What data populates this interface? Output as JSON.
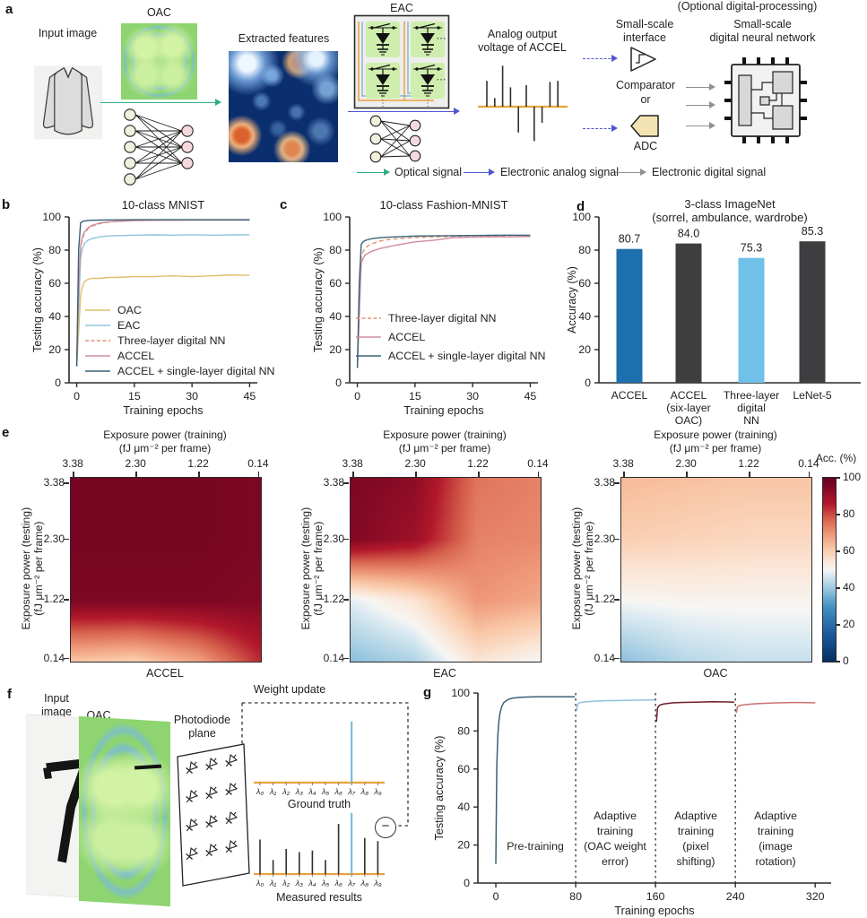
{
  "letters": {
    "a": "a",
    "b": "b",
    "c": "c",
    "d": "d",
    "e": "e",
    "f": "f",
    "g": "g"
  },
  "panel_a": {
    "input_image_label": "Input image",
    "oac_label": "OAC",
    "extracted_label": "Extracted features",
    "eac_label": "EAC",
    "analog_line1": "Analog output",
    "analog_line2": "voltage of ACCEL",
    "analog_stems": [
      2.4,
      0.8,
      3.8,
      1.8,
      -2.4,
      2.0,
      -3.2,
      -1.5,
      2.3,
      2.4
    ],
    "optional_label": "(Optional digital-processing)",
    "interface_line1": "Small-scale",
    "interface_line2": "interface",
    "comparator_label": "Comparator",
    "or_label": "or",
    "adc_label": "ADC",
    "dnn_line1": "Small-scale",
    "dnn_line2": "digital neural network",
    "colors": {
      "optical_arrow": "#2fae85",
      "analog_arrow": "#5055cd",
      "digital_arrow": "#909090",
      "baseline_orange": "#e8a23c"
    },
    "flow_legend": [
      {
        "label": "Optical signal",
        "color": "#2fae85"
      },
      {
        "label": "Electronic analog signal",
        "color": "#5055cd"
      },
      {
        "label": "Electronic digital signal",
        "color": "#909090"
      }
    ]
  },
  "chart_data": [
    {
      "id": "b",
      "type": "line",
      "title": "10-class MNIST",
      "xlabel": "Training epochs",
      "ylabel": "Testing accuracy (%)",
      "xlim": [
        -2,
        47
      ],
      "ylim": [
        0,
        100
      ],
      "xticks": [
        0,
        15,
        30,
        45
      ],
      "yticks": [
        0,
        20,
        40,
        60,
        80,
        100
      ],
      "x": [
        0,
        0.5,
        1,
        1.5,
        2,
        3,
        4,
        6,
        8,
        10,
        15,
        20,
        25,
        30,
        35,
        40,
        45
      ],
      "series": [
        {
          "name": "OAC",
          "color": "#dfbd6b",
          "dash": false,
          "values": [
            10,
            30,
            53,
            58,
            61,
            62.5,
            63,
            63,
            63.5,
            63.5,
            64,
            64,
            64.5,
            64,
            64.5,
            65,
            64.8
          ]
        },
        {
          "name": "EAC",
          "color": "#8fc3da",
          "dash": false,
          "values": [
            10,
            45,
            75,
            81,
            84,
            86,
            87,
            88,
            88.5,
            88.7,
            89,
            89.2,
            89,
            89.3,
            89,
            89.2,
            89.3
          ]
        },
        {
          "name": "Three-layer digital NN",
          "color": "#dd9672",
          "dash": true,
          "values": [
            10,
            55,
            82,
            87,
            90,
            93,
            94.5,
            96,
            96.8,
            97.2,
            97.8,
            98,
            98.1,
            98.2,
            98.2,
            98.2,
            98.2
          ]
        },
        {
          "name": "ACCEL",
          "color": "#cd8d9f",
          "dash": false,
          "values": [
            10,
            57,
            83,
            88,
            91,
            93.5,
            95,
            96.3,
            97,
            97.3,
            97.8,
            98,
            98,
            98.1,
            98.1,
            98.1,
            98.1
          ]
        },
        {
          "name": "ACCEL + single-layer digital NN",
          "color": "#3a6176",
          "dash": false,
          "values": [
            10,
            80,
            96.5,
            97.3,
            97.6,
            97.9,
            98,
            98.1,
            98.2,
            98.2,
            98.3,
            98.3,
            98.3,
            98.3,
            98.3,
            98.3,
            98.3
          ]
        }
      ]
    },
    {
      "id": "c",
      "type": "line",
      "title": "10-class Fashion-MNIST",
      "xlabel": "Training epochs",
      "ylabel": "Testing accuracy (%)",
      "xlim": [
        -2,
        47
      ],
      "ylim": [
        0,
        100
      ],
      "xticks": [
        0,
        15,
        30,
        45
      ],
      "yticks": [
        0,
        20,
        40,
        60,
        80,
        100
      ],
      "x": [
        0,
        0.5,
        1,
        1.5,
        2,
        3,
        4,
        6,
        8,
        10,
        15,
        20,
        25,
        30,
        35,
        40,
        45
      ],
      "series": [
        {
          "name": "Three-layer digital NN",
          "color": "#dd9672",
          "dash": true,
          "values": [
            9,
            50,
            76,
            79,
            81,
            83,
            84,
            85.5,
            86.3,
            86.8,
            87.6,
            88,
            88.3,
            88.6,
            88.7,
            88.8,
            88.8
          ]
        },
        {
          "name": "ACCEL",
          "color": "#cd8d9f",
          "dash": false,
          "values": [
            9,
            40,
            72,
            75,
            77,
            78.5,
            79.5,
            81,
            82,
            83,
            85,
            86,
            87.5,
            87.8,
            88,
            88,
            88.2
          ]
        },
        {
          "name": "ACCEL + single-layer digital NN",
          "color": "#3a6176",
          "dash": false,
          "values": [
            9,
            60,
            83.5,
            85,
            85.8,
            86.5,
            87,
            87.5,
            87.8,
            88,
            88.5,
            88.6,
            88.7,
            88.8,
            88.9,
            89,
            88.9
          ]
        }
      ]
    },
    {
      "id": "d",
      "type": "bar",
      "title_line1": "3-class ImageNet",
      "title_line2": "(sorrel, ambulance, wardrobe)",
      "ylabel": "Accuracy (%)",
      "ylim": [
        0,
        100
      ],
      "yticks": [
        0,
        20,
        40,
        60,
        80,
        100
      ],
      "categories": [
        [
          "ACCEL"
        ],
        [
          "ACCEL",
          "(six-layer",
          "OAC)"
        ],
        [
          "Three-layer",
          "digital",
          "NN"
        ],
        [
          "LeNet-5"
        ]
      ],
      "values": [
        80.7,
        84.0,
        75.3,
        85.3
      ],
      "value_labels": [
        "80.7",
        "84.0",
        "75.3",
        "85.3"
      ],
      "colors": [
        "#1d6fad",
        "#3e3e40",
        "#6fc1e7",
        "#3e3e40"
      ]
    },
    {
      "id": "e",
      "type": "heatmap",
      "top_title_line1": "Exposure power (training)",
      "top_title_line2": "(fJ μm⁻² per frame)",
      "left_title_line1": "Exposure power (testing)",
      "left_title_line2": "(fJ μm⁻² per frame)",
      "xticks": [
        "3.38",
        "2.30",
        "1.22",
        "0.14"
      ],
      "yticks": [
        "3.38",
        "2.30",
        "1.22",
        "0.14"
      ],
      "subplots": [
        {
          "name": "ACCEL",
          "grid": [
            [
              97,
              97,
              97,
              96
            ],
            [
              97,
              97,
              97,
              96
            ],
            [
              96,
              96,
              96,
              95
            ],
            [
              62,
              60,
              68,
              84
            ]
          ]
        },
        {
          "name": "EAC",
          "grid": [
            [
              96,
              93,
              75,
              73
            ],
            [
              95,
              90,
              73,
              72
            ],
            [
              48,
              55,
              70,
              67
            ],
            [
              38,
              42,
              55,
              50
            ]
          ]
        },
        {
          "name": "OAC",
          "grid": [
            [
              64,
              63,
              62,
              62
            ],
            [
              60,
              59,
              58,
              58
            ],
            [
              50,
              51,
              51,
              51
            ],
            [
              38,
              43,
              45,
              45
            ]
          ]
        }
      ],
      "colorbar": {
        "title": "Acc. (%)",
        "ticks": [
          100,
          80,
          60,
          40,
          20,
          0
        ]
      }
    },
    {
      "id": "g",
      "type": "line",
      "xlabel": "Training epochs",
      "ylabel": "Testing accuracy (%)",
      "xlim": [
        -18,
        336
      ],
      "ylim": [
        0,
        100
      ],
      "xticks": [
        0,
        80,
        160,
        240,
        320
      ],
      "yticks": [
        0,
        20,
        40,
        60,
        80,
        100
      ],
      "vlines": [
        80,
        160,
        240
      ],
      "segments": [
        {
          "name": "Pre-training",
          "color": "#3a6176",
          "x": [
            0,
            1,
            2,
            3,
            4,
            6,
            8,
            12,
            16,
            24,
            32,
            40,
            48,
            56,
            64,
            72,
            79
          ],
          "values": [
            10,
            62,
            78,
            85,
            89,
            93,
            95,
            96.5,
            97.2,
            97.7,
            97.9,
            98,
            98,
            98,
            98,
            98,
            98
          ]
        },
        {
          "name": "Adaptive training (OAC weight error)",
          "color": "#8fc3da",
          "x": [
            81,
            82,
            83,
            85,
            89,
            97,
            105,
            113,
            121,
            137,
            153,
            159
          ],
          "values": [
            91,
            94,
            94.5,
            95,
            95.3,
            95.6,
            95.8,
            96,
            96,
            96.2,
            96.3,
            96.3
          ]
        },
        {
          "name": "Adaptive training (pixel shifting)",
          "color": "#6d1b29",
          "x": [
            161,
            162,
            163,
            165,
            169,
            177,
            185,
            201,
            217,
            233,
            239
          ],
          "values": [
            85,
            92,
            93,
            93.8,
            94.3,
            94.8,
            95,
            95.2,
            95.4,
            95.3,
            95.2
          ]
        },
        {
          "name": "Adaptive training (image rotation)",
          "color": "#c96f6e",
          "x": [
            241,
            242,
            243,
            245,
            249,
            257,
            265,
            281,
            297,
            313,
            320
          ],
          "values": [
            89.5,
            92.5,
            93,
            93.5,
            93.8,
            94.2,
            94.5,
            94.8,
            95,
            94.9,
            94.8
          ]
        }
      ],
      "phase_labels": [
        [
          "Pre-training"
        ],
        [
          "Adaptive",
          "training",
          "(OAC weight",
          "error)"
        ],
        [
          "Adaptive",
          "training",
          "(pixel",
          "shifting)"
        ],
        [
          "Adaptive",
          "training",
          "(image",
          "rotation)"
        ]
      ]
    }
  ],
  "panel_f": {
    "input_line1": "Input",
    "input_line2": "image",
    "oac_label": "OAC",
    "photodiode_line1": "Photodiode",
    "photodiode_line2": "plane",
    "weight_update_label": "Weight update",
    "ground_truth_label": "Ground truth",
    "measured_label": "Measured results",
    "minus_sign": "−",
    "lambda_labels": [
      "λ₀",
      "λ₁",
      "λ₂",
      "λ₃",
      "λ₄",
      "λ₅",
      "λ₆",
      "λ₇",
      "λ₈",
      "λ₉"
    ],
    "ground_truth_stems": [
      0,
      0,
      0,
      0,
      0,
      0,
      0,
      3.9,
      0,
      0
    ],
    "measured_stems": [
      2.2,
      0.9,
      1.6,
      1.4,
      1.5,
      0.9,
      3.2,
      3.9,
      2.3,
      2.1
    ],
    "highlight_index": 7,
    "highlight_color": "#74b7d6"
  }
}
